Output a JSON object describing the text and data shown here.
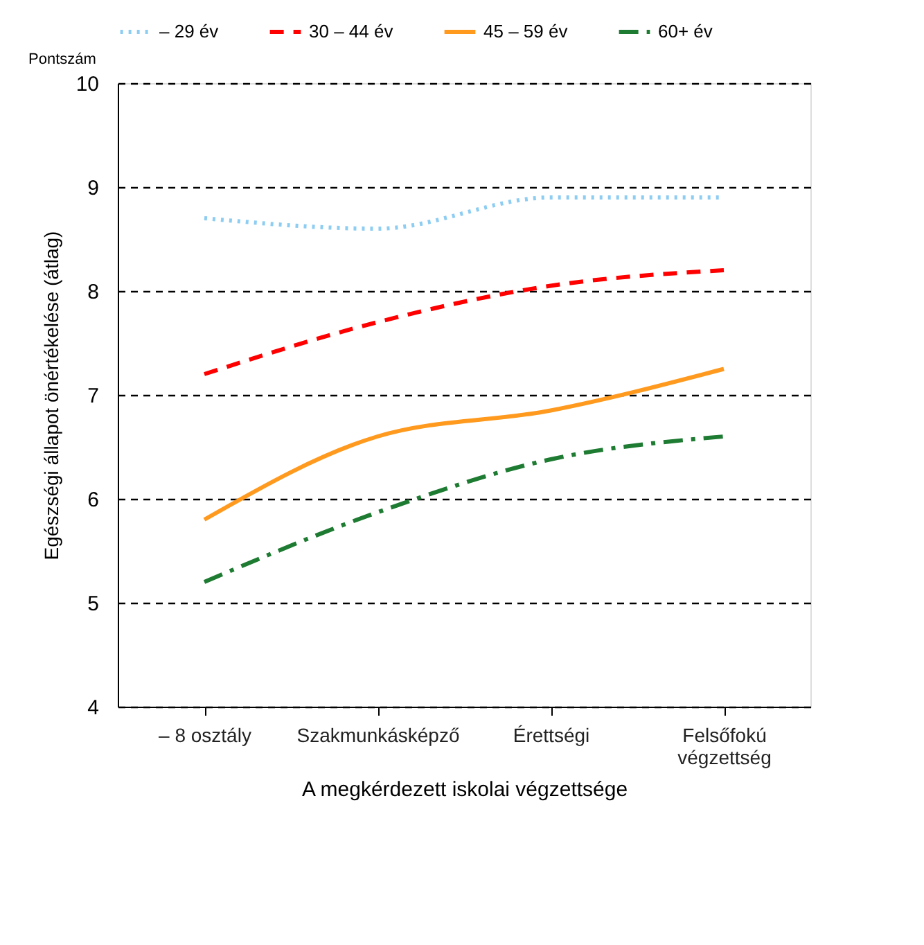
{
  "chart_data": {
    "type": "line",
    "xlabel": "A megkérdezett iskolai végzettsége",
    "ylabel": "Egészségi állapot önértékelése (átlag)",
    "annotations": [
      "Pontszám"
    ],
    "categories": [
      "– 8 osztály",
      "Szakmunkásképző",
      "Érettségi",
      "Felsőfokú\nvégzettség"
    ],
    "series": [
      {
        "name": "– 29 év",
        "color": "#8ecdf2",
        "line_style": "dotted",
        "values": [
          8.7,
          8.6,
          8.9,
          8.9
        ]
      },
      {
        "name": "30 – 44 év",
        "color": "#ff0000",
        "line_style": "dashed",
        "values": [
          7.2,
          7.7,
          8.05,
          8.2
        ]
      },
      {
        "name": "45 – 59 év",
        "color": "#ff9a1f",
        "line_style": "solid",
        "values": [
          5.8,
          6.6,
          6.85,
          7.25
        ]
      },
      {
        "name": "60+ év",
        "color": "#1e7b32",
        "line_style": "dashdot",
        "values": [
          5.2,
          5.87,
          6.38,
          6.6
        ]
      }
    ],
    "ylim": [
      4,
      10
    ],
    "yticks": [
      4,
      5,
      6,
      7,
      8,
      9,
      10
    ],
    "grid": "y",
    "legend": "top",
    "marker": "none"
  }
}
